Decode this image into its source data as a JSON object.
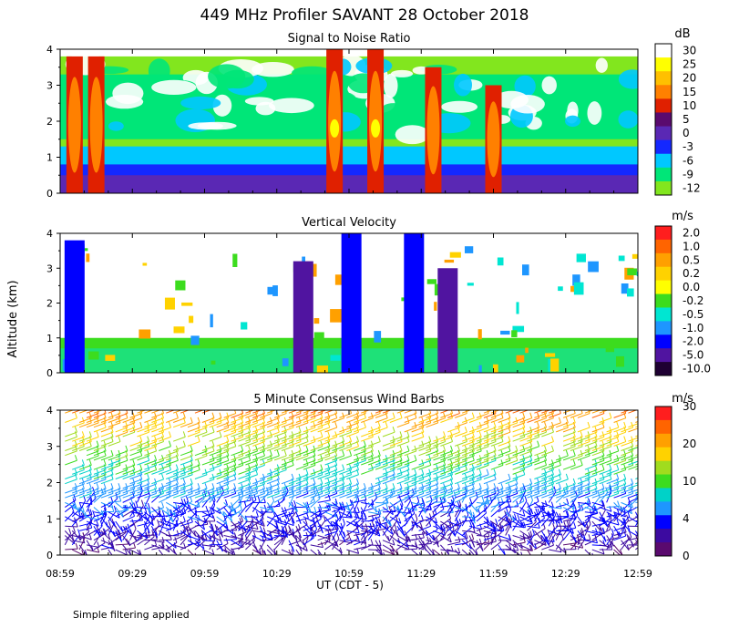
{
  "figure": {
    "title": "449 MHz Profiler SAVANT 28 October 2018",
    "ylabel": "Altitude (km)",
    "xlabel": "UT  (CDT - 5)",
    "note": "Simple filtering applied"
  },
  "chart_data": [
    {
      "type": "heatmap",
      "title": "Signal to Noise Ratio",
      "unit": "dB",
      "ylim": [
        0,
        4
      ],
      "yticks": [
        "0",
        "1",
        "2",
        "3",
        "4"
      ],
      "xticks": [
        "08:59",
        "09:29",
        "09:59",
        "10:29",
        "10:59",
        "11:29",
        "11:59",
        "12:29",
        "12:59"
      ],
      "colorbar": {
        "labels": [
          "30",
          "25",
          "20",
          "15",
          "10",
          "5",
          "0",
          "-3",
          "-6",
          "-9",
          "-12"
        ],
        "colors": [
          "#ffffff",
          "#ffff00",
          "#ffc000",
          "#ff8000",
          "#e02000",
          "#5a0a6e",
          "#5a28b4",
          "#1428ff",
          "#00c8ff",
          "#00e678",
          "#82e61e"
        ]
      },
      "features": [
        {
          "t": "09:05",
          "top_km": 3.8,
          "peak_db": 15
        },
        {
          "t": "09:14",
          "top_km": 3.8,
          "peak_db": 15
        },
        {
          "t": "10:53",
          "top_km": 4.0,
          "peak_db": 25
        },
        {
          "t": "11:10",
          "top_km": 4.0,
          "peak_db": 25
        },
        {
          "t": "11:34",
          "top_km": 3.5,
          "peak_db": 15
        },
        {
          "t": "11:59",
          "top_km": 3.0,
          "peak_db": 10
        }
      ]
    },
    {
      "type": "heatmap",
      "title": "Vertical Velocity",
      "unit": "m/s",
      "ylim": [
        0,
        4
      ],
      "yticks": [
        "0",
        "1",
        "2",
        "3",
        "4"
      ],
      "xticks": [
        "08:59",
        "09:29",
        "09:59",
        "10:29",
        "10:59",
        "11:29",
        "11:59",
        "12:29",
        "12:59"
      ],
      "colorbar": {
        "labels": [
          "2.0",
          "1.0",
          "0.5",
          "0.2",
          "0.0",
          "-0.2",
          "-0.5",
          "-1.0",
          "-2.0",
          "-5.0",
          "-10.0"
        ],
        "colors": [
          "#ff1e1e",
          "#ff6400",
          "#ffa000",
          "#ffd200",
          "#ffff00",
          "#3cdc1e",
          "#00e6d2",
          "#1e96ff",
          "#0000ff",
          "#5014a0",
          "#1e0032"
        ]
      },
      "features": [
        {
          "t": "09:05",
          "top_km": 3.8,
          "w_ms": -2.0
        },
        {
          "t": "10:40",
          "top_km": 3.2,
          "w_ms": -5.0
        },
        {
          "t": "11:00",
          "top_km": 4.0,
          "w_ms": -2.0
        },
        {
          "t": "11:26",
          "top_km": 4.0,
          "w_ms": -2.0
        },
        {
          "t": "11:40",
          "top_km": 3.0,
          "w_ms": -5.0
        }
      ]
    },
    {
      "type": "scatter",
      "title": "5 Minute Consensus Wind Barbs",
      "unit": "m/s",
      "ylim": [
        0,
        4
      ],
      "yticks": [
        "0",
        "1",
        "2",
        "3",
        "4"
      ],
      "xticks": [
        "08:59",
        "09:29",
        "09:59",
        "10:29",
        "10:59",
        "11:29",
        "11:59",
        "12:29",
        "12:59"
      ],
      "colorbar": {
        "labels": [
          "30",
          "20",
          "10",
          "4",
          "0"
        ],
        "colors": [
          "#ff1e1e",
          "#ff6400",
          "#ffa000",
          "#ffd200",
          "#a0dc1e",
          "#3cdc1e",
          "#00d2c8",
          "#1e96ff",
          "#0000ff",
          "#3c0aa0",
          "#5a0a6e"
        ]
      },
      "speed_by_altitude": [
        {
          "altitude_km": 0.2,
          "speed_ms": 3
        },
        {
          "altitude_km": 1.0,
          "speed_ms": 6
        },
        {
          "altitude_km": 2.0,
          "speed_ms": 12
        },
        {
          "altitude_km": 3.0,
          "speed_ms": 20
        },
        {
          "altitude_km": 4.0,
          "speed_ms": 28
        }
      ]
    }
  ]
}
